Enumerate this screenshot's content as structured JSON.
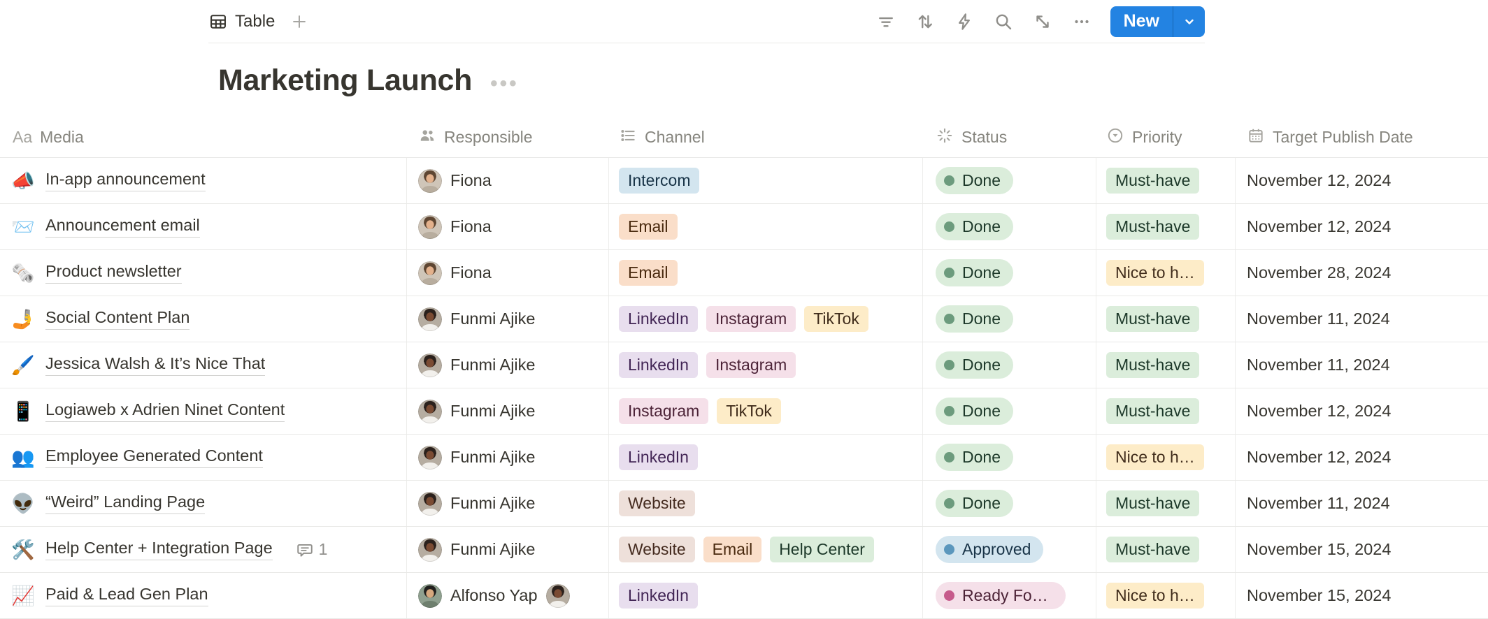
{
  "toolbar": {
    "view_tab": "Table",
    "new_label": "New",
    "accent_blue": "#2383E2",
    "icons": [
      "filter",
      "sort",
      "automation",
      "search",
      "expand",
      "more"
    ]
  },
  "header": {
    "title": "Marketing Launch"
  },
  "palette": {
    "blue": {
      "bg": "#D3E5EF",
      "text": "#183347",
      "dot": "#5B97BD"
    },
    "orange": {
      "bg": "#FADEC9",
      "text": "#49290E",
      "dot": "#C77B48"
    },
    "purple": {
      "bg": "#E8DEEE",
      "text": "#412454",
      "dot": "#9A6DD7"
    },
    "pink": {
      "bg": "#F5E0E9",
      "text": "#4C2337",
      "dot": "#C65A8B"
    },
    "yellow": {
      "bg": "#FDECC8",
      "text": "#402C1B",
      "dot": "#CB912F"
    },
    "brown": {
      "bg": "#EEE0DA",
      "text": "#442A1E",
      "dot": "#9F6B53"
    },
    "green": {
      "bg": "#DBEDDB",
      "text": "#1C3829",
      "dot": "#6C9B7D"
    }
  },
  "avatars": {
    "fiona": {
      "bg": "#CFC5B8",
      "hair": "#5E4632",
      "skin": "#E3B18C",
      "top": "#B8AD9E"
    },
    "funmi": {
      "bg": "#B6ADA1",
      "hair": "#2B211C",
      "skin": "#7A4B33",
      "top": "#F2F0EC"
    },
    "alfonso": {
      "bg": "#8FA08F",
      "hair": "#21201E",
      "skin": "#D6A87E",
      "top": "#6E7F6E"
    }
  },
  "table": {
    "columns": [
      {
        "label": "Media",
        "icon": "text"
      },
      {
        "label": "Responsible",
        "icon": "people"
      },
      {
        "label": "Channel",
        "icon": "list"
      },
      {
        "label": "Status",
        "icon": "status"
      },
      {
        "label": "Priority",
        "icon": "select"
      },
      {
        "label": "Target Publish Date",
        "icon": "calendar"
      }
    ],
    "rows": [
      {
        "media": {
          "emoji": "📣",
          "title": "In-app announcement"
        },
        "responsible": [
          {
            "name": "Fiona",
            "avatar": "fiona"
          }
        ],
        "channels": [
          {
            "label": "Intercom",
            "color": "blue"
          }
        ],
        "status": {
          "label": "Done",
          "color": "green"
        },
        "priority": {
          "label": "Must-have",
          "color": "green"
        },
        "date": "November 12, 2024",
        "comments": null
      },
      {
        "media": {
          "emoji": "📨",
          "title": "Announcement email"
        },
        "responsible": [
          {
            "name": "Fiona",
            "avatar": "fiona"
          }
        ],
        "channels": [
          {
            "label": "Email",
            "color": "orange"
          }
        ],
        "status": {
          "label": "Done",
          "color": "green"
        },
        "priority": {
          "label": "Must-have",
          "color": "green"
        },
        "date": "November 12, 2024",
        "comments": null
      },
      {
        "media": {
          "emoji": "🗞️",
          "title": "Product newsletter"
        },
        "responsible": [
          {
            "name": "Fiona",
            "avatar": "fiona"
          }
        ],
        "channels": [
          {
            "label": "Email",
            "color": "orange"
          }
        ],
        "status": {
          "label": "Done",
          "color": "green"
        },
        "priority": {
          "label": "Nice to h…",
          "color": "yellow"
        },
        "date": "November 28, 2024",
        "comments": null
      },
      {
        "media": {
          "emoji": "🤳",
          "title": "Social Content Plan"
        },
        "responsible": [
          {
            "name": "Funmi Ajike",
            "avatar": "funmi"
          }
        ],
        "channels": [
          {
            "label": "LinkedIn",
            "color": "purple"
          },
          {
            "label": "Instagram",
            "color": "pink"
          },
          {
            "label": "TikTok",
            "color": "yellow"
          }
        ],
        "status": {
          "label": "Done",
          "color": "green"
        },
        "priority": {
          "label": "Must-have",
          "color": "green"
        },
        "date": "November 11, 2024",
        "comments": null
      },
      {
        "media": {
          "emoji": "🖌️",
          "title": "Jessica Walsh & It’s Nice That"
        },
        "responsible": [
          {
            "name": "Funmi Ajike",
            "avatar": "funmi"
          }
        ],
        "channels": [
          {
            "label": "LinkedIn",
            "color": "purple"
          },
          {
            "label": "Instagram",
            "color": "pink"
          }
        ],
        "status": {
          "label": "Done",
          "color": "green"
        },
        "priority": {
          "label": "Must-have",
          "color": "green"
        },
        "date": "November 11, 2024",
        "comments": null
      },
      {
        "media": {
          "emoji": "📱",
          "title": "Logiaweb x Adrien Ninet Content"
        },
        "responsible": [
          {
            "name": "Funmi Ajike",
            "avatar": "funmi"
          }
        ],
        "channels": [
          {
            "label": "Instagram",
            "color": "pink"
          },
          {
            "label": "TikTok",
            "color": "yellow"
          }
        ],
        "status": {
          "label": "Done",
          "color": "green"
        },
        "priority": {
          "label": "Must-have",
          "color": "green"
        },
        "date": "November 12, 2024",
        "comments": null
      },
      {
        "media": {
          "emoji": "👥",
          "title": "Employee Generated Content"
        },
        "responsible": [
          {
            "name": "Funmi Ajike",
            "avatar": "funmi"
          }
        ],
        "channels": [
          {
            "label": "LinkedIn",
            "color": "purple"
          }
        ],
        "status": {
          "label": "Done",
          "color": "green"
        },
        "priority": {
          "label": "Nice to h…",
          "color": "yellow"
        },
        "date": "November 12, 2024",
        "comments": null
      },
      {
        "media": {
          "emoji": "👽",
          "title": "“Weird” Landing Page"
        },
        "responsible": [
          {
            "name": "Funmi Ajike",
            "avatar": "funmi"
          }
        ],
        "channels": [
          {
            "label": "Website",
            "color": "brown"
          }
        ],
        "status": {
          "label": "Done",
          "color": "green"
        },
        "priority": {
          "label": "Must-have",
          "color": "green"
        },
        "date": "November 11, 2024",
        "comments": null
      },
      {
        "media": {
          "emoji": "🛠️",
          "title": "Help Center + Integration Page"
        },
        "responsible": [
          {
            "name": "Funmi Ajike",
            "avatar": "funmi"
          }
        ],
        "channels": [
          {
            "label": "Website",
            "color": "brown"
          },
          {
            "label": "Email",
            "color": "orange"
          },
          {
            "label": "Help Center",
            "color": "green"
          }
        ],
        "status": {
          "label": "Approved",
          "color": "blue"
        },
        "priority": {
          "label": "Must-have",
          "color": "green"
        },
        "date": "November 15, 2024",
        "comments": "1"
      },
      {
        "media": {
          "emoji": "📈",
          "title": "Paid & Lead Gen Plan"
        },
        "responsible": [
          {
            "name": "Alfonso Yap",
            "avatar": "alfonso"
          },
          {
            "name": "",
            "avatar": "funmi"
          }
        ],
        "channels": [
          {
            "label": "LinkedIn",
            "color": "purple"
          }
        ],
        "status": {
          "label": "Ready For …",
          "color": "pink"
        },
        "priority": {
          "label": "Nice to h…",
          "color": "yellow"
        },
        "date": "November 15, 2024",
        "comments": null
      }
    ]
  }
}
